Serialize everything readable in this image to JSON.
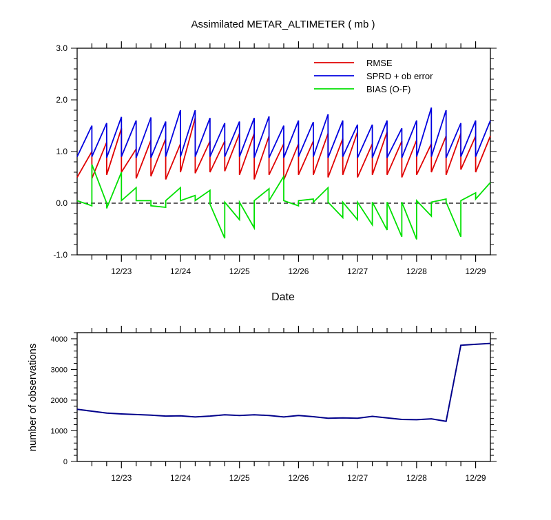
{
  "chart_data": [
    {
      "type": "line",
      "title": "Assimilated METAR_ALTIMETER ( mb )",
      "xlabel": "Date",
      "ylabel": "",
      "xlim": [
        0,
        7
      ],
      "ylim": [
        -1.0,
        3.0
      ],
      "yticks": [
        "3.0",
        "2.0",
        "1.0",
        "0.0",
        "-1.0"
      ],
      "yticks_values": [
        3.0,
        2.0,
        1.0,
        0.0,
        -1.0
      ],
      "xticks": [
        "12/23",
        "12/24",
        "12/25",
        "12/26",
        "12/27",
        "12/28",
        "12/29"
      ],
      "xticks_values": [
        0.75,
        1.75,
        2.75,
        3.75,
        4.75,
        5.75,
        6.75
      ],
      "legend_position": "top-right",
      "zero_line": true,
      "series": [
        {
          "name": "RMSE",
          "color": "#e00000",
          "x": [
            0.0,
            0.25,
            0.25,
            0.5,
            0.5,
            0.75,
            0.75,
            1.0,
            1.0,
            1.25,
            1.25,
            1.5,
            1.5,
            1.75,
            1.75,
            2.0,
            2.0,
            2.25,
            2.25,
            2.5,
            2.5,
            2.75,
            2.75,
            3.0,
            3.0,
            3.25,
            3.25,
            3.5,
            3.5,
            3.75,
            3.75,
            4.0,
            4.0,
            4.25,
            4.25,
            4.5,
            4.5,
            4.75,
            4.75,
            5.0,
            5.0,
            5.25,
            5.25,
            5.5,
            5.5,
            5.75,
            5.75,
            6.0,
            6.0,
            6.25,
            6.25,
            6.5,
            6.5,
            6.75,
            6.75,
            7.0
          ],
          "values": [
            0.5,
            1.0,
            0.48,
            1.18,
            0.55,
            1.45,
            0.6,
            1.05,
            0.48,
            1.22,
            0.52,
            1.25,
            0.46,
            1.15,
            0.6,
            1.65,
            0.58,
            1.2,
            0.6,
            1.2,
            0.62,
            1.35,
            0.55,
            1.35,
            0.46,
            1.3,
            0.55,
            1.15,
            0.45,
            1.15,
            0.55,
            1.2,
            0.55,
            1.35,
            0.5,
            1.25,
            0.55,
            1.38,
            0.5,
            1.15,
            0.55,
            1.38,
            0.55,
            1.2,
            0.5,
            1.22,
            0.55,
            1.15,
            0.6,
            1.3,
            0.55,
            1.35,
            0.65,
            1.3,
            0.6,
            1.3
          ]
        },
        {
          "name": "SPRD + ob error",
          "color": "#0000e0",
          "x": [
            0.0,
            0.25,
            0.25,
            0.5,
            0.5,
            0.75,
            0.75,
            1.0,
            1.0,
            1.25,
            1.25,
            1.5,
            1.5,
            1.75,
            1.75,
            2.0,
            2.0,
            2.25,
            2.25,
            2.5,
            2.5,
            2.75,
            2.75,
            3.0,
            3.0,
            3.25,
            3.25,
            3.5,
            3.5,
            3.75,
            3.75,
            4.0,
            4.0,
            4.25,
            4.25,
            4.5,
            4.5,
            4.75,
            4.75,
            5.0,
            5.0,
            5.25,
            5.25,
            5.5,
            5.5,
            5.75,
            5.75,
            6.0,
            6.0,
            6.25,
            6.25,
            6.5,
            6.5,
            6.75,
            6.75,
            7.0
          ],
          "values": [
            0.9,
            1.5,
            0.9,
            1.55,
            0.88,
            1.67,
            0.9,
            1.6,
            0.88,
            1.66,
            0.88,
            1.58,
            0.9,
            1.8,
            0.9,
            1.8,
            0.9,
            1.65,
            0.9,
            1.55,
            0.9,
            1.58,
            0.9,
            1.65,
            0.88,
            1.68,
            0.88,
            1.5,
            0.88,
            1.6,
            0.9,
            1.57,
            0.9,
            1.72,
            0.88,
            1.6,
            0.9,
            1.52,
            0.88,
            1.52,
            0.88,
            1.6,
            0.88,
            1.45,
            0.88,
            1.6,
            0.9,
            1.85,
            0.9,
            1.8,
            0.88,
            1.55,
            0.9,
            1.6,
            0.9,
            1.6
          ]
        },
        {
          "name": "BIAS (O-F)",
          "color": "#00e000",
          "x": [
            0.0,
            0.25,
            0.25,
            0.5,
            0.5,
            0.75,
            0.75,
            1.0,
            1.0,
            1.25,
            1.25,
            1.5,
            1.5,
            1.75,
            1.75,
            2.0,
            2.0,
            2.25,
            2.25,
            2.5,
            2.5,
            2.75,
            2.75,
            3.0,
            3.0,
            3.25,
            3.25,
            3.5,
            3.5,
            3.75,
            3.75,
            4.0,
            4.0,
            4.25,
            4.25,
            4.5,
            4.5,
            4.75,
            4.75,
            5.0,
            5.0,
            5.25,
            5.25,
            5.5,
            5.5,
            5.75,
            5.75,
            6.0,
            6.0,
            6.25,
            6.25,
            6.5,
            6.5,
            6.75,
            6.75,
            7.0
          ],
          "values": [
            0.05,
            -0.05,
            0.75,
            0.0,
            -0.1,
            0.6,
            0.05,
            0.3,
            0.05,
            0.05,
            -0.05,
            -0.08,
            0.05,
            0.3,
            0.05,
            0.15,
            0.05,
            0.25,
            -0.02,
            -0.68,
            0.02,
            -0.32,
            0.02,
            -0.48,
            0.05,
            0.28,
            0.05,
            0.52,
            0.05,
            -0.05,
            0.05,
            0.08,
            0.02,
            0.3,
            0.02,
            -0.28,
            0.02,
            -0.32,
            0.02,
            -0.42,
            0.02,
            -0.52,
            0.02,
            -0.65,
            0.02,
            -0.7,
            0.05,
            -0.25,
            0.02,
            0.08,
            0.02,
            -0.65,
            0.05,
            0.2,
            0.08,
            0.4
          ]
        }
      ]
    },
    {
      "type": "line",
      "title": "",
      "xlabel": "",
      "ylabel": "number of observations",
      "xlim": [
        0,
        7
      ],
      "ylim": [
        0,
        4200
      ],
      "yticks": [
        "4000",
        "3000",
        "2000",
        "1000",
        "0"
      ],
      "yticks_values": [
        4000,
        3000,
        2000,
        1000,
        0
      ],
      "xticks": [
        "12/23",
        "12/24",
        "12/25",
        "12/26",
        "12/27",
        "12/28",
        "12/29"
      ],
      "xticks_values": [
        0.75,
        1.75,
        2.75,
        3.75,
        4.75,
        5.75,
        6.75
      ],
      "series": [
        {
          "name": "",
          "color": "#00008b",
          "x": [
            0.0,
            0.25,
            0.5,
            0.75,
            1.0,
            1.25,
            1.5,
            1.75,
            2.0,
            2.25,
            2.5,
            2.75,
            3.0,
            3.25,
            3.5,
            3.75,
            4.0,
            4.25,
            4.5,
            4.75,
            5.0,
            5.25,
            5.5,
            5.75,
            6.0,
            6.25,
            6.5,
            6.75,
            7.0
          ],
          "values": [
            1700,
            1640,
            1580,
            1550,
            1530,
            1510,
            1480,
            1490,
            1450,
            1480,
            1520,
            1500,
            1520,
            1500,
            1450,
            1500,
            1460,
            1410,
            1420,
            1410,
            1470,
            1420,
            1370,
            1360,
            1390,
            1310,
            3790,
            3820,
            3850
          ]
        }
      ]
    }
  ]
}
